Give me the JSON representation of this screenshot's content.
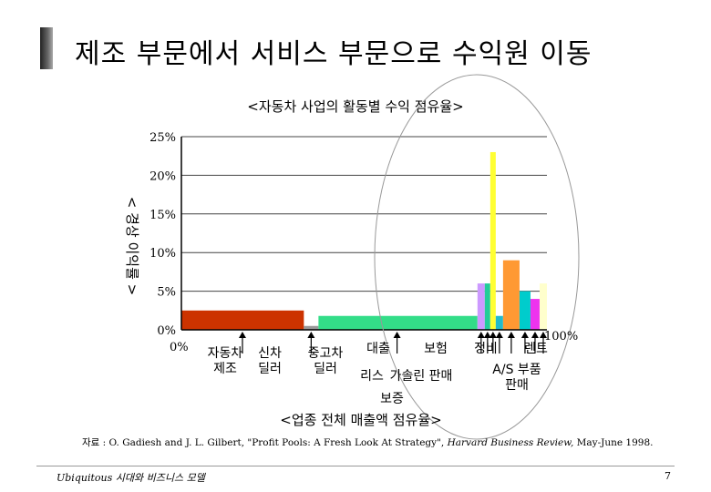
{
  "slide": {
    "title": "제조 부문에서 서비스 부문으로 수익원 이동",
    "source_prefix": "자료 : O. Gadiesh and J. L. Gilbert, \"Profit Pools: A Fresh Look At Strategy\", ",
    "source_journal": "Harvard Business Review,",
    "source_suffix": " May-June 1998.",
    "footer_left": "Ubiquitous 시대와 비즈니스 모델",
    "page_number": "7"
  },
  "chart_data": {
    "type": "bar",
    "title": "<자동차 사업의 활동별 수익 점유율>",
    "ylabel": "< 경상 이익률 >",
    "xlabel": "<업종 전체 매출액 점유율>",
    "ylim": [
      0,
      25
    ],
    "yticks": [
      "0%",
      "5%",
      "10%",
      "15%",
      "20%",
      "25%"
    ],
    "x_start_label": "0%",
    "x_end_label": "100%",
    "grid": true,
    "segments": [
      {
        "label": "자동차 제조",
        "start": 0,
        "end": 33.5,
        "value": 2.5,
        "color": "#cc3300"
      },
      {
        "label": "신차 딜러",
        "start": 33.5,
        "end": 37.5,
        "value": 0.5,
        "color": "#999999"
      },
      {
        "label": "중고차 딜러",
        "start": 37.5,
        "end": 81,
        "value": 1.8,
        "color": "#33dd88"
      },
      {
        "label": "대출",
        "start": 81,
        "end": 83,
        "value": 6,
        "color": "#cc99ff"
      },
      {
        "label": "리스",
        "start": 83,
        "end": 84.5,
        "value": 6,
        "color": "#22cc99"
      },
      {
        "label": "가솔린 판매",
        "start": 84.5,
        "end": 86,
        "value": 23,
        "color": "#ffff33"
      },
      {
        "label": "보증",
        "start": 86,
        "end": 88,
        "value": 1.8,
        "color": "#22bbcc"
      },
      {
        "label": "보험",
        "start": 88,
        "end": 92.5,
        "value": 9,
        "color": "#ff9933"
      },
      {
        "label": "정비",
        "start": 92.5,
        "end": 95.5,
        "value": 5,
        "color": "#00cccc"
      },
      {
        "label": "A/S 부품 판매",
        "start": 95.5,
        "end": 98,
        "value": 4,
        "color": "#ee33ee"
      },
      {
        "label": "렌트",
        "start": 98,
        "end": 100,
        "value": 6,
        "color": "#ffffcc"
      }
    ]
  }
}
